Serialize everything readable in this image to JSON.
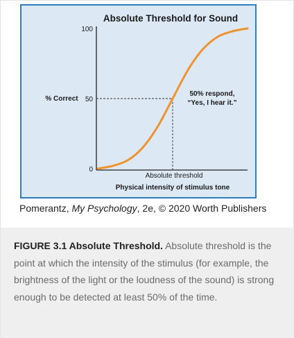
{
  "chart_data": {
    "type": "line",
    "title": "Absolute Threshold for Sound",
    "ylabel": "% Correct",
    "xlabel": "Physical intensity of stimulus tone",
    "ylim": [
      0,
      100
    ],
    "xlim": [
      0,
      10
    ],
    "y_ticks": [
      "0",
      "50",
      "100"
    ],
    "grid": false,
    "series": [
      {
        "color": "#f0922e",
        "x": [
          0,
          1,
          2,
          3,
          4,
          5,
          6,
          7,
          8,
          9,
          10
        ],
        "y": [
          0,
          2,
          6,
          15,
          30,
          50,
          70,
          85,
          94,
          98,
          100
        ]
      }
    ],
    "threshold": {
      "x": 5,
      "y": 50,
      "x_label": "Absolute threshold"
    },
    "annotation": {
      "line1": "50% respond,",
      "line2": "“Yes, I hear it.”"
    }
  },
  "credit": {
    "before": "Pomerantz, ",
    "book": "My Psychology",
    "after": ", 2e, © 2020 Worth Publishers"
  },
  "caption": {
    "label": "FIGURE 3.1 Absolute Threshold.",
    "text": " Absolute threshold is the point at which the intensity of the stimulus (for example, the brightness of the light or the loudness of the sound) is strong enough to be detected at least 50% of the time."
  },
  "colors": {
    "panel_bg": "#dde8f5",
    "panel_border": "#2d7fc1",
    "curve": "#f0922e",
    "caption_bg": "#efefef"
  }
}
